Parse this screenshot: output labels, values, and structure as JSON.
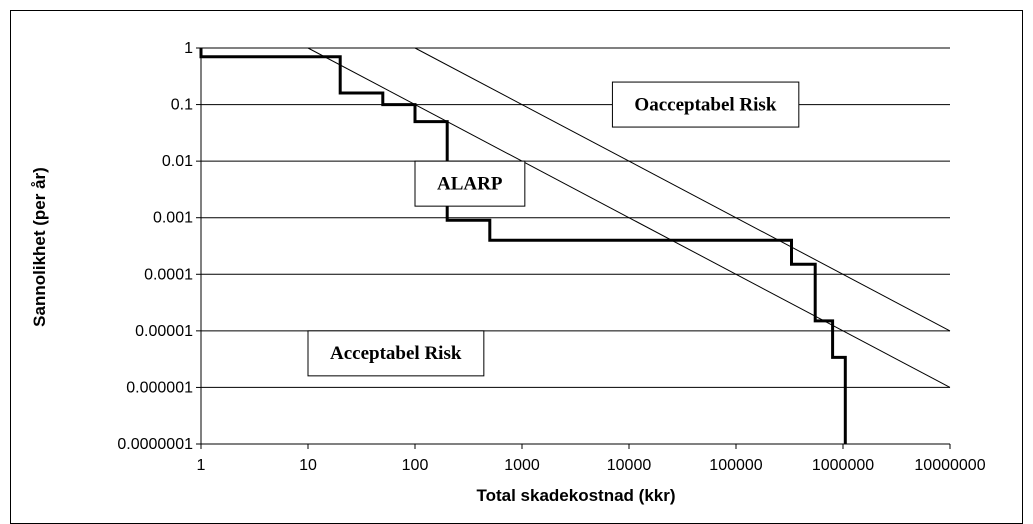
{
  "chart_data": {
    "type": "line",
    "x_scale": "log",
    "y_scale": "log",
    "xlim": [
      1,
      10000000
    ],
    "ylim": [
      1e-07,
      1
    ],
    "xlabel": "Total skadekostnad (kkr)",
    "ylabel": "Sannolikhet (per år)",
    "grid": {
      "horizontal": true,
      "vertical": false
    },
    "x_ticks": [
      {
        "value": 1,
        "label": "1"
      },
      {
        "value": 10,
        "label": "10"
      },
      {
        "value": 100,
        "label": "100"
      },
      {
        "value": 1000,
        "label": "1000"
      },
      {
        "value": 10000,
        "label": "10000"
      },
      {
        "value": 100000,
        "label": "100000"
      },
      {
        "value": 1000000,
        "label": "1000000"
      },
      {
        "value": 10000000,
        "label": "10000000"
      }
    ],
    "y_ticks": [
      {
        "value": 1,
        "label": "1"
      },
      {
        "value": 0.1,
        "label": "0.1"
      },
      {
        "value": 0.01,
        "label": "0.01"
      },
      {
        "value": 0.001,
        "label": "0.001"
      },
      {
        "value": 0.0001,
        "label": "0.0001"
      },
      {
        "value": 1e-05,
        "label": "0.00001"
      },
      {
        "value": 1e-06,
        "label": "0.000001"
      },
      {
        "value": 1e-07,
        "label": "0.0000001"
      }
    ],
    "series": [
      {
        "style": "step",
        "stroke_width": "thick",
        "color": "#000000",
        "points": [
          {
            "x": 1,
            "y": 1
          },
          {
            "x": 1,
            "y": 0.7
          },
          {
            "x": 20,
            "y": 0.7
          },
          {
            "x": 20,
            "y": 0.16
          },
          {
            "x": 50,
            "y": 0.16
          },
          {
            "x": 50,
            "y": 0.1
          },
          {
            "x": 100,
            "y": 0.1
          },
          {
            "x": 100,
            "y": 0.05
          },
          {
            "x": 200,
            "y": 0.05
          },
          {
            "x": 200,
            "y": 0.0009
          },
          {
            "x": 500,
            "y": 0.0009
          },
          {
            "x": 500,
            "y": 0.0004
          },
          {
            "x": 330000,
            "y": 0.0004
          },
          {
            "x": 330000,
            "y": 0.00015
          },
          {
            "x": 550000,
            "y": 0.00015
          },
          {
            "x": 550000,
            "y": 1.5e-05
          },
          {
            "x": 800000,
            "y": 1.5e-05
          },
          {
            "x": 800000,
            "y": 3.4e-06
          },
          {
            "x": 1050000,
            "y": 3.4e-06
          },
          {
            "x": 1050000,
            "y": 1e-07
          }
        ]
      },
      {
        "style": "line",
        "stroke_width": "thin",
        "color": "#000000",
        "points": [
          {
            "x": 10,
            "y": 1
          },
          {
            "x": 10000000,
            "y": 1e-06
          }
        ]
      },
      {
        "style": "line",
        "stroke_width": "thin",
        "color": "#000000",
        "points": [
          {
            "x": 100,
            "y": 1
          },
          {
            "x": 10000000,
            "y": 1e-05
          }
        ]
      }
    ],
    "annotations": [
      {
        "text": "Oacceptabel Risk",
        "x": 7000,
        "y": 0.25,
        "boxed": true
      },
      {
        "text": "ALARP",
        "x": 100,
        "y": 0.01,
        "boxed": true
      },
      {
        "text": "Acceptabel Risk",
        "x": 10,
        "y": 1e-05,
        "boxed": true
      }
    ]
  }
}
